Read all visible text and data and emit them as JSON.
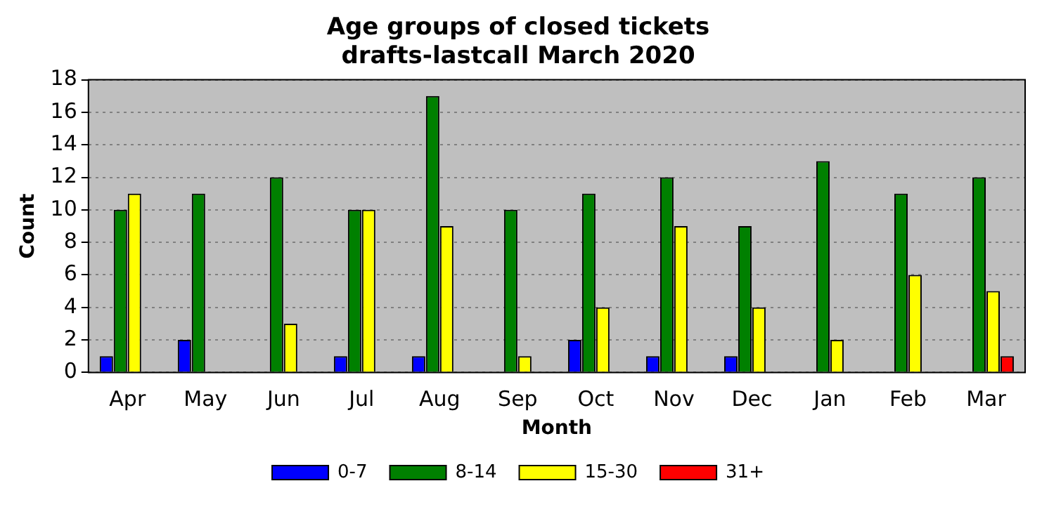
{
  "chart_data": {
    "type": "bar",
    "title": "Age groups of closed tickets",
    "subtitle": "drafts-lastcall March 2020",
    "xlabel": "Month",
    "ylabel": "Count",
    "categories": [
      "Apr",
      "May",
      "Jun",
      "Jul",
      "Aug",
      "Sep",
      "Oct",
      "Nov",
      "Dec",
      "Jan",
      "Feb",
      "Mar"
    ],
    "series": [
      {
        "name": "0-7",
        "color": "#0000ff",
        "values": [
          1,
          2,
          0,
          1,
          1,
          0,
          2,
          1,
          1,
          0,
          0,
          0
        ]
      },
      {
        "name": "8-14",
        "color": "#008000",
        "values": [
          10,
          11,
          12,
          10,
          17,
          10,
          11,
          12,
          9,
          13,
          11,
          12
        ]
      },
      {
        "name": "15-30",
        "color": "#ffff00",
        "values": [
          11,
          0,
          3,
          10,
          9,
          1,
          4,
          9,
          4,
          2,
          6,
          5
        ]
      },
      {
        "name": "31+",
        "color": "#ff0000",
        "values": [
          0,
          0,
          0,
          0,
          0,
          0,
          0,
          0,
          0,
          0,
          0,
          1
        ]
      }
    ],
    "ylim": [
      0,
      18
    ],
    "yticks": [
      0,
      2,
      4,
      6,
      8,
      10,
      12,
      14,
      16,
      18
    ],
    "grid": "y",
    "legend": "bottom"
  }
}
